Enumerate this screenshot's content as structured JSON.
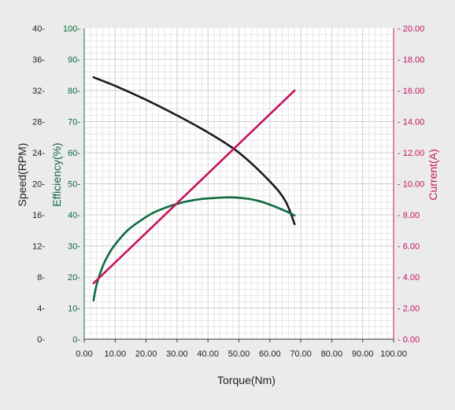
{
  "chart_data": {
    "type": "line",
    "xlabel": "Torque(Nm)",
    "xlim": [
      0,
      100
    ],
    "x_ticks": [
      "0.00",
      "10.00",
      "20.00",
      "30.00",
      "40.00",
      "50.00",
      "60.00",
      "70.00",
      "80.00",
      "90.00",
      "100.00"
    ],
    "axes": {
      "speed": {
        "label": "Speed(RPM)",
        "range": [
          0,
          40
        ],
        "ticks": [
          "0-",
          "4-",
          "8-",
          "12-",
          "16-",
          "20-",
          "24-",
          "28-",
          "32-",
          "36-",
          "40-"
        ]
      },
      "efficiency": {
        "label": "Efficiency(%)",
        "range": [
          0,
          100
        ],
        "ticks": [
          "0-",
          "10-",
          "20-",
          "30-",
          "40-",
          "50-",
          "60-",
          "70-",
          "80-",
          "90-",
          "100-"
        ]
      },
      "current": {
        "label": "Current(A)",
        "range": [
          0,
          20
        ],
        "ticks": [
          "- 0.00",
          "- 2.00",
          "- 4.00",
          "- 6.00",
          "- 8.00",
          "- 10.00",
          "- 12.00",
          "- 14.00",
          "- 16.00",
          "- 18.00",
          "- 20.00"
        ]
      }
    },
    "grid": true,
    "series": [
      {
        "axis": "speed",
        "color": "#1a1a1a",
        "x": [
          3,
          10,
          20,
          30,
          40,
          50,
          60,
          65,
          68
        ],
        "y": [
          33.7,
          32.6,
          30.8,
          28.8,
          26.6,
          24.0,
          20.3,
          17.8,
          14.8
        ]
      },
      {
        "axis": "efficiency",
        "color": "#0e6b3f",
        "x": [
          3,
          4,
          6,
          8,
          10,
          14,
          18,
          22,
          26,
          30,
          34,
          38,
          42,
          46,
          48,
          50,
          54,
          58,
          62,
          66,
          68
        ],
        "y": [
          12.5,
          17.5,
          23.5,
          27.5,
          30.5,
          35,
          38,
          40.5,
          42.2,
          43.5,
          44.5,
          45.1,
          45.4,
          45.6,
          45.6,
          45.5,
          45.0,
          44.0,
          42.5,
          40.8,
          39.8
        ]
      },
      {
        "axis": "current",
        "color": "#c51361",
        "x": [
          3,
          68
        ],
        "y": [
          3.6,
          16.0
        ]
      }
    ]
  }
}
